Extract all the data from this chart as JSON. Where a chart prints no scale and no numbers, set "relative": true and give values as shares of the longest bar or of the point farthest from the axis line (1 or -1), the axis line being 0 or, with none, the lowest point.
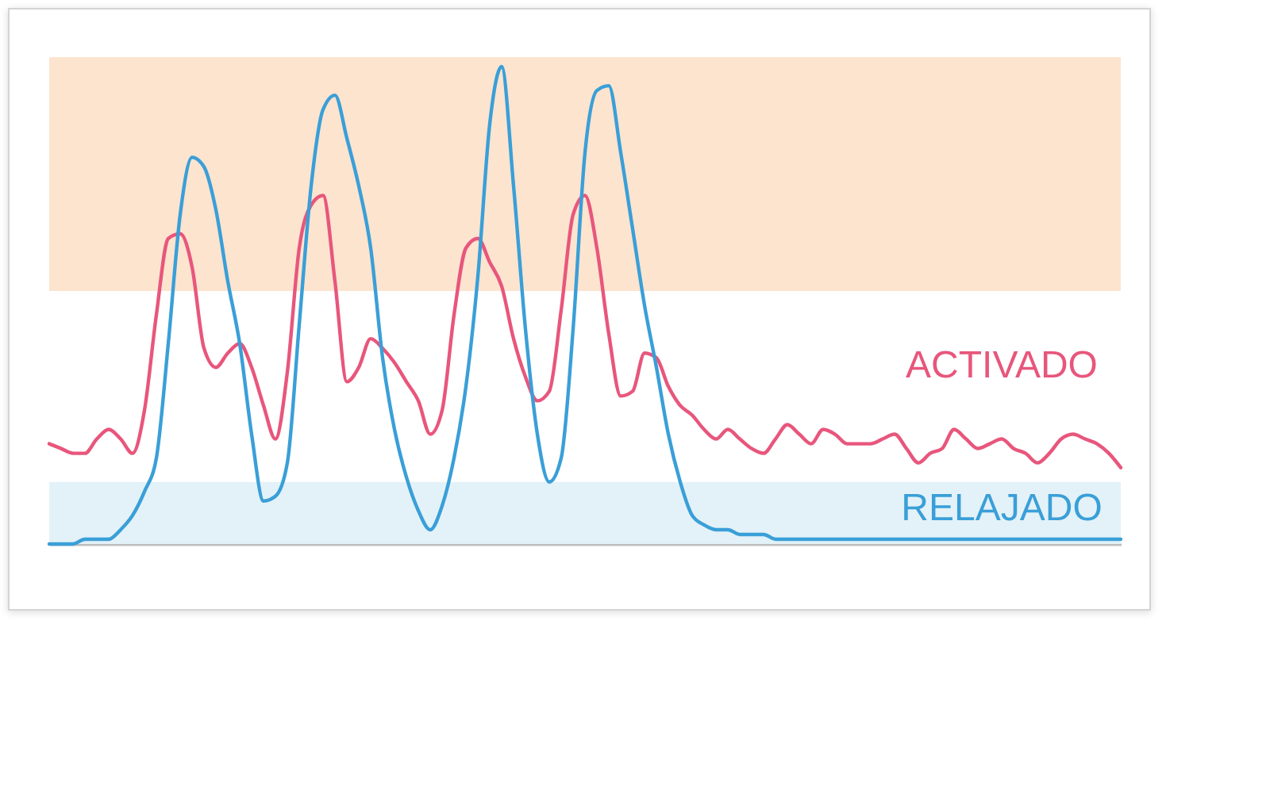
{
  "chart_data": {
    "type": "line",
    "relative": true,
    "categories": [
      null,
      null,
      null,
      null,
      null,
      null,
      null,
      null,
      null,
      null,
      null,
      null,
      null,
      null,
      null,
      null,
      null,
      null,
      null,
      null,
      null,
      null,
      null,
      null,
      null,
      null,
      null,
      null,
      null,
      null,
      null,
      null,
      null,
      null,
      null,
      null,
      null,
      null,
      null,
      null,
      null,
      null,
      null,
      null,
      null,
      null,
      null,
      null,
      null,
      null,
      null,
      null,
      null,
      null,
      null,
      null,
      null,
      null,
      null,
      null,
      null,
      null,
      null,
      null,
      null,
      null,
      null,
      null,
      null,
      null,
      null,
      null,
      null,
      null,
      null,
      null,
      null,
      null,
      null,
      null,
      null,
      null,
      null,
      null,
      null,
      null,
      null,
      null,
      null,
      null,
      null
    ],
    "series": [
      {
        "name": "ACTIVADO",
        "color": "#e8567c",
        "values": [
          0.21,
          0.2,
          0.19,
          0.19,
          0.22,
          0.24,
          0.22,
          0.19,
          0.28,
          0.48,
          0.64,
          0.65,
          0.58,
          0.41,
          0.37,
          0.4,
          0.42,
          0.37,
          0.29,
          0.22,
          0.36,
          0.62,
          0.71,
          0.73,
          0.55,
          0.34,
          0.37,
          0.43,
          0.41,
          0.38,
          0.34,
          0.3,
          0.23,
          0.28,
          0.48,
          0.62,
          0.64,
          0.59,
          0.54,
          0.43,
          0.35,
          0.3,
          0.32,
          0.49,
          0.69,
          0.73,
          0.62,
          0.44,
          0.31,
          0.32,
          0.4,
          0.39,
          0.33,
          0.29,
          0.27,
          0.24,
          0.22,
          0.24,
          0.22,
          0.2,
          0.19,
          0.22,
          0.25,
          0.23,
          0.21,
          0.24,
          0.23,
          0.21,
          0.21,
          0.21,
          0.22,
          0.23,
          0.2,
          0.17,
          0.19,
          0.2,
          0.24,
          0.22,
          0.2,
          0.21,
          0.22,
          0.2,
          0.19,
          0.17,
          0.19,
          0.22,
          0.23,
          0.22,
          0.21,
          0.19,
          0.16
        ]
      },
      {
        "name": "RELAJADO",
        "color": "#3a9fd8",
        "values": [
          0,
          0,
          0,
          0.01,
          0.01,
          0.01,
          0.03,
          0.06,
          0.11,
          0.18,
          0.42,
          0.69,
          0.81,
          0.79,
          0.7,
          0.55,
          0.42,
          0.23,
          0.09,
          0.1,
          0.17,
          0.46,
          0.75,
          0.91,
          0.94,
          0.85,
          0.75,
          0.62,
          0.39,
          0.24,
          0.14,
          0.07,
          0.03,
          0.08,
          0.18,
          0.33,
          0.56,
          0.88,
          1.0,
          0.75,
          0.45,
          0.23,
          0.13,
          0.18,
          0.45,
          0.82,
          0.95,
          0.96,
          0.82,
          0.66,
          0.5,
          0.37,
          0.23,
          0.13,
          0.06,
          0.04,
          0.03,
          0.03,
          0.02,
          0.02,
          0.02,
          0.01,
          0.01,
          0.01,
          0.01,
          0.01,
          0.01,
          0.01,
          0.01,
          0.01,
          0.01,
          0.01,
          0.01,
          0.01,
          0.01,
          0.01,
          0.01,
          0.01,
          0.01,
          0.01,
          0.01,
          0.01,
          0.01,
          0.01,
          0.01,
          0.01,
          0.01,
          0.01,
          0.01,
          0.01,
          0.01
        ]
      }
    ],
    "bands": [
      {
        "axis": "y",
        "from": 0.53,
        "to": 1.02,
        "color": "#fde4cf"
      },
      {
        "axis": "y",
        "from": 0,
        "to": 0.13,
        "color": "#e3f2f8"
      }
    ]
  }
}
